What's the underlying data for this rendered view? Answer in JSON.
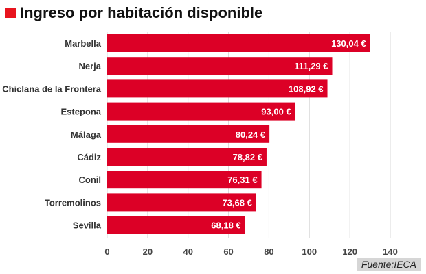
{
  "title": "Ingreso por habitación disponible",
  "source": "Fuente:IECA",
  "colors": {
    "bar": "#dc0026",
    "title_square": "#e8141e",
    "grid": "#d9d9d9"
  },
  "chart_data": {
    "type": "bar",
    "orientation": "horizontal",
    "categories": [
      "Marbella",
      "Nerja",
      "Chiclana de la Frontera",
      "Estepona",
      "Málaga",
      "Cádiz",
      "Conil",
      "Torremolinos",
      "Sevilla"
    ],
    "values": [
      130.04,
      111.29,
      108.92,
      93.0,
      80.24,
      78.82,
      76.31,
      73.68,
      68.18
    ],
    "value_labels": [
      "130,04 €",
      "111,29 €",
      "108,92 €",
      "93,00 €",
      "80,24 €",
      "78,82 €",
      "76,31 €",
      "73,68 €",
      "68,18 €"
    ],
    "xticks": [
      0,
      20,
      40,
      60,
      80,
      100,
      120,
      140
    ],
    "xlim": [
      0,
      140
    ],
    "grid": true
  }
}
